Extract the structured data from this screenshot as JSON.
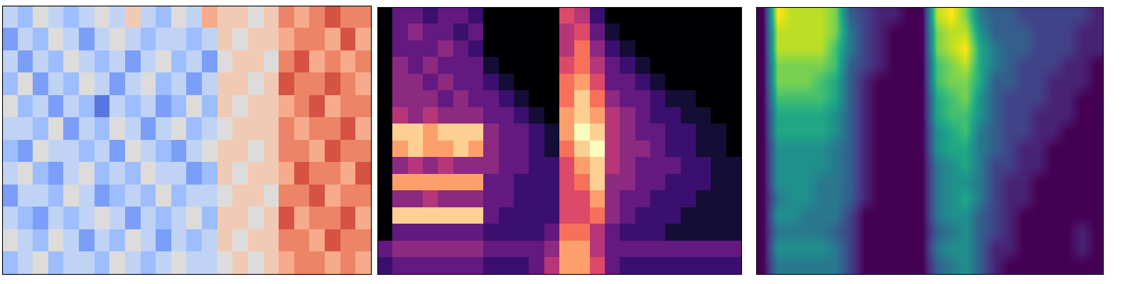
{
  "chart_data": [
    {
      "type": "heatmap",
      "color": "coolwarm",
      "tick_labels": false,
      "color_range": [
        -5,
        5
      ],
      "cells": [
        [
          -1,
          -2,
          0,
          -1,
          -2,
          -1,
          0,
          -1,
          1,
          -1,
          -2,
          0,
          -1,
          2,
          1,
          1,
          0,
          1,
          3,
          2,
          3,
          4,
          3,
          3
        ],
        [
          -3,
          -1,
          -2,
          0,
          -1,
          -3,
          -1,
          0,
          -1,
          -2,
          -1,
          -1,
          -2,
          -1,
          1,
          0,
          1,
          1,
          2,
          3,
          3,
          2,
          4,
          2
        ],
        [
          -1,
          -3,
          -1,
          -2,
          0,
          -1,
          -2,
          -1,
          -3,
          -1,
          0,
          -2,
          -1,
          -3,
          0,
          1,
          1,
          0,
          3,
          4,
          2,
          3,
          2,
          3
        ],
        [
          -2,
          0,
          -3,
          -1,
          -2,
          0,
          -1,
          -3,
          -1,
          0,
          -2,
          -1,
          -3,
          -1,
          1,
          1,
          0,
          1,
          4,
          3,
          3,
          4,
          3,
          2
        ],
        [
          0,
          -2,
          -1,
          -3,
          -1,
          -2,
          -4,
          -1,
          -2,
          -1,
          -3,
          -2,
          0,
          -2,
          1,
          0,
          1,
          1,
          2,
          3,
          4,
          2,
          3,
          3
        ],
        [
          -1,
          -1,
          -2,
          0,
          -3,
          -1,
          -2,
          0,
          -1,
          -3,
          -1,
          0,
          -2,
          -1,
          0,
          1,
          1,
          1,
          3,
          2,
          3,
          3,
          4,
          2
        ],
        [
          -2,
          -3,
          0,
          -1,
          -1,
          -2,
          -1,
          -3,
          0,
          -1,
          -2,
          -3,
          -1,
          0,
          1,
          1,
          0,
          1,
          3,
          3,
          2,
          4,
          3,
          3
        ],
        [
          -1,
          0,
          -2,
          -3,
          -1,
          0,
          -2,
          -1,
          -2,
          0,
          -1,
          -1,
          -3,
          -2,
          1,
          0,
          1,
          1,
          2,
          4,
          3,
          3,
          2,
          4
        ],
        [
          -3,
          -1,
          -1,
          -2,
          0,
          -1,
          -3,
          -2,
          -1,
          -2,
          0,
          -2,
          -1,
          -1,
          0,
          1,
          1,
          0,
          3,
          3,
          4,
          2,
          3,
          3
        ],
        [
          -1,
          -2,
          -3,
          -1,
          -2,
          -1,
          0,
          -1,
          -3,
          -1,
          -2,
          -1,
          0,
          -2,
          1,
          1,
          0,
          1,
          4,
          2,
          3,
          3,
          4,
          2
        ],
        [
          0,
          -1,
          -2,
          0,
          -1,
          -3,
          -1,
          -2,
          0,
          -1,
          -3,
          -1,
          -2,
          -1,
          1,
          0,
          1,
          1,
          3,
          3,
          2,
          4,
          3,
          3
        ],
        [
          -2,
          -1,
          0,
          -2,
          -1,
          -1,
          -2,
          0,
          -1,
          -2,
          -1,
          0,
          -1,
          -1,
          0,
          1,
          0,
          1,
          2,
          3,
          3,
          2,
          3,
          2
        ]
      ]
    },
    {
      "type": "heatmap",
      "color": "magma",
      "tick_labels": false,
      "color_range": [
        0,
        10
      ],
      "cells": [
        [
          0,
          3,
          3,
          2,
          3,
          3,
          2,
          0,
          0,
          0,
          0,
          0,
          6,
          5,
          2,
          0,
          0,
          0,
          0,
          0,
          0,
          0,
          0,
          0
        ],
        [
          0,
          3,
          4,
          3,
          3,
          2,
          3,
          0,
          0,
          0,
          0,
          0,
          5,
          6,
          3,
          1,
          0,
          0,
          0,
          0,
          0,
          0,
          0,
          0
        ],
        [
          0,
          3,
          3,
          3,
          4,
          3,
          2,
          0,
          0,
          0,
          0,
          0,
          5,
          7,
          4,
          2,
          1,
          0,
          0,
          0,
          0,
          0,
          0,
          0
        ],
        [
          0,
          4,
          3,
          4,
          3,
          3,
          3,
          1,
          0,
          0,
          0,
          0,
          6,
          7,
          5,
          3,
          2,
          1,
          0,
          0,
          0,
          0,
          0,
          0
        ],
        [
          0,
          4,
          4,
          3,
          4,
          3,
          3,
          2,
          1,
          0,
          0,
          0,
          7,
          8,
          6,
          3,
          3,
          2,
          1,
          0,
          0,
          0,
          0,
          0
        ],
        [
          0,
          4,
          4,
          4,
          3,
          4,
          3,
          3,
          2,
          1,
          0,
          0,
          7,
          9,
          7,
          4,
          3,
          3,
          2,
          1,
          1,
          0,
          0,
          0
        ],
        [
          0,
          5,
          4,
          5,
          4,
          4,
          4,
          3,
          3,
          2,
          1,
          0,
          8,
          9,
          8,
          5,
          4,
          3,
          2,
          2,
          1,
          1,
          0,
          0
        ],
        [
          0,
          9,
          9,
          8,
          9,
          9,
          9,
          4,
          3,
          3,
          2,
          1,
          8,
          10,
          9,
          5,
          4,
          3,
          3,
          2,
          2,
          1,
          1,
          0
        ],
        [
          0,
          8,
          9,
          8,
          8,
          9,
          8,
          4,
          3,
          3,
          2,
          1,
          7,
          9,
          10,
          5,
          4,
          4,
          3,
          2,
          2,
          1,
          1,
          0
        ],
        [
          0,
          4,
          5,
          4,
          5,
          4,
          4,
          4,
          3,
          3,
          2,
          2,
          6,
          8,
          9,
          5,
          4,
          3,
          3,
          3,
          2,
          2,
          1,
          1
        ],
        [
          0,
          8,
          8,
          8,
          8,
          8,
          8,
          3,
          3,
          2,
          2,
          2,
          6,
          7,
          9,
          4,
          4,
          3,
          3,
          2,
          2,
          2,
          1,
          1
        ],
        [
          0,
          4,
          4,
          5,
          4,
          4,
          4,
          3,
          3,
          2,
          2,
          2,
          6,
          6,
          8,
          4,
          3,
          3,
          2,
          2,
          2,
          1,
          1,
          1
        ],
        [
          0,
          9,
          9,
          9,
          9,
          9,
          9,
          3,
          2,
          2,
          2,
          2,
          6,
          6,
          7,
          4,
          3,
          2,
          2,
          2,
          1,
          1,
          1,
          1
        ],
        [
          0,
          3,
          3,
          3,
          3,
          3,
          3,
          2,
          2,
          2,
          2,
          3,
          7,
          7,
          5,
          3,
          2,
          2,
          2,
          1,
          1,
          1,
          1,
          1
        ],
        [
          3,
          4,
          4,
          4,
          4,
          4,
          4,
          3,
          3,
          3,
          3,
          4,
          8,
          8,
          5,
          3,
          3,
          3,
          3,
          3,
          3,
          3,
          3,
          3
        ],
        [
          2,
          3,
          3,
          3,
          3,
          3,
          3,
          2,
          2,
          2,
          3,
          5,
          8,
          8,
          6,
          3,
          2,
          2,
          2,
          2,
          2,
          2,
          2,
          2
        ]
      ]
    },
    {
      "type": "heatmap",
      "color": "viridis",
      "tick_labels": false,
      "color_range": [
        0,
        10
      ],
      "cells": [
        [
          0,
          10,
          9,
          9,
          9,
          8,
          3,
          2,
          1,
          1,
          0,
          0,
          9,
          10,
          8,
          4,
          3,
          3,
          2,
          2,
          2,
          2,
          2,
          1
        ],
        [
          0,
          9,
          9,
          9,
          9,
          8,
          4,
          2,
          1,
          0,
          0,
          0,
          8,
          9,
          9,
          5,
          3,
          3,
          3,
          2,
          2,
          2,
          1,
          1
        ],
        [
          0,
          9,
          9,
          9,
          9,
          7,
          4,
          2,
          1,
          0,
          0,
          0,
          8,
          9,
          10,
          6,
          4,
          3,
          3,
          2,
          2,
          2,
          1,
          1
        ],
        [
          0,
          8,
          8,
          8,
          8,
          7,
          3,
          2,
          1,
          0,
          0,
          0,
          7,
          8,
          9,
          6,
          4,
          3,
          2,
          2,
          2,
          1,
          1,
          0
        ],
        [
          0,
          8,
          8,
          8,
          7,
          6,
          3,
          1,
          0,
          0,
          0,
          0,
          7,
          8,
          8,
          6,
          3,
          3,
          2,
          2,
          1,
          1,
          1,
          0
        ],
        [
          0,
          7,
          7,
          7,
          7,
          6,
          3,
          1,
          0,
          0,
          0,
          0,
          6,
          7,
          8,
          5,
          3,
          2,
          2,
          2,
          1,
          1,
          0,
          0
        ],
        [
          0,
          6,
          6,
          6,
          6,
          5,
          3,
          1,
          0,
          0,
          0,
          0,
          6,
          7,
          7,
          5,
          3,
          2,
          2,
          1,
          1,
          1,
          0,
          0
        ],
        [
          0,
          6,
          6,
          6,
          6,
          5,
          3,
          1,
          0,
          0,
          0,
          0,
          5,
          6,
          7,
          4,
          3,
          2,
          2,
          1,
          1,
          0,
          0,
          0
        ],
        [
          0,
          5,
          5,
          5,
          5,
          4,
          3,
          1,
          0,
          0,
          0,
          0,
          5,
          6,
          6,
          4,
          3,
          2,
          1,
          1,
          0,
          0,
          0,
          0
        ],
        [
          0,
          5,
          5,
          5,
          5,
          4,
          3,
          1,
          0,
          0,
          0,
          0,
          4,
          5,
          6,
          4,
          2,
          2,
          1,
          1,
          0,
          0,
          0,
          0
        ],
        [
          0,
          5,
          5,
          5,
          4,
          4,
          3,
          1,
          0,
          0,
          0,
          0,
          4,
          5,
          5,
          4,
          2,
          1,
          1,
          0,
          0,
          0,
          0,
          0
        ],
        [
          0,
          4,
          5,
          5,
          4,
          4,
          3,
          1,
          0,
          0,
          0,
          0,
          4,
          5,
          6,
          4,
          2,
          1,
          1,
          0,
          0,
          0,
          0,
          0
        ],
        [
          0,
          5,
          5,
          4,
          4,
          4,
          2,
          0,
          0,
          0,
          0,
          0,
          4,
          5,
          5,
          3,
          2,
          1,
          0,
          0,
          0,
          0,
          0,
          0
        ],
        [
          0,
          4,
          4,
          4,
          4,
          3,
          2,
          0,
          0,
          0,
          0,
          0,
          3,
          4,
          5,
          3,
          2,
          1,
          0,
          0,
          0,
          0,
          1,
          0
        ],
        [
          0,
          5,
          5,
          5,
          5,
          4,
          2,
          0,
          0,
          0,
          0,
          0,
          4,
          5,
          5,
          3,
          1,
          1,
          0,
          0,
          0,
          0,
          1,
          0
        ],
        [
          0,
          4,
          4,
          4,
          4,
          4,
          2,
          0,
          0,
          0,
          0,
          0,
          3,
          4,
          5,
          3,
          1,
          0,
          0,
          0,
          0,
          0,
          0,
          0
        ]
      ]
    }
  ]
}
